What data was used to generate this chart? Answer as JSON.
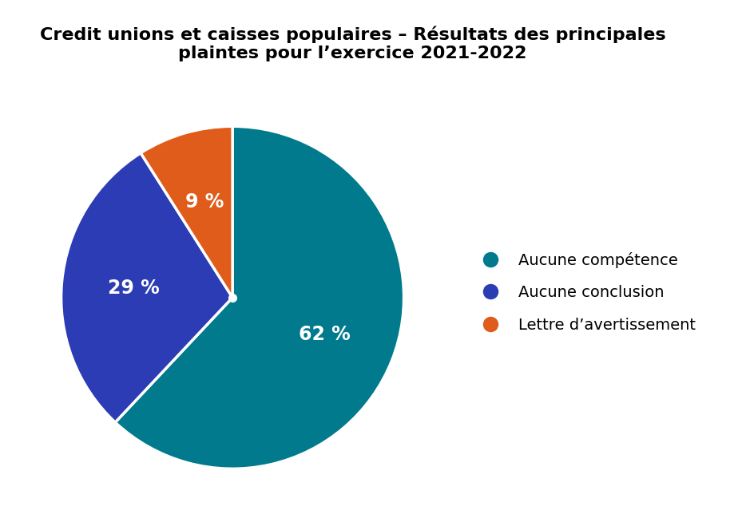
{
  "title": "Credit unions et caisses populaires – Résultats des principales\nplaintes pour l’exercice 2021-2022",
  "slices": [
    62,
    29,
    9
  ],
  "labels": [
    "62 %",
    "29 %",
    "9 %"
  ],
  "colors": [
    "#007A8C",
    "#2B3CB5",
    "#E05C1A"
  ],
  "legend_labels": [
    "Aucune compétence",
    "Aucune conclusion",
    "Lettre d’avertissement"
  ],
  "start_angle": 90,
  "text_color": "#FFFFFF",
  "title_fontsize": 16,
  "label_fontsize": 17,
  "legend_fontsize": 14
}
